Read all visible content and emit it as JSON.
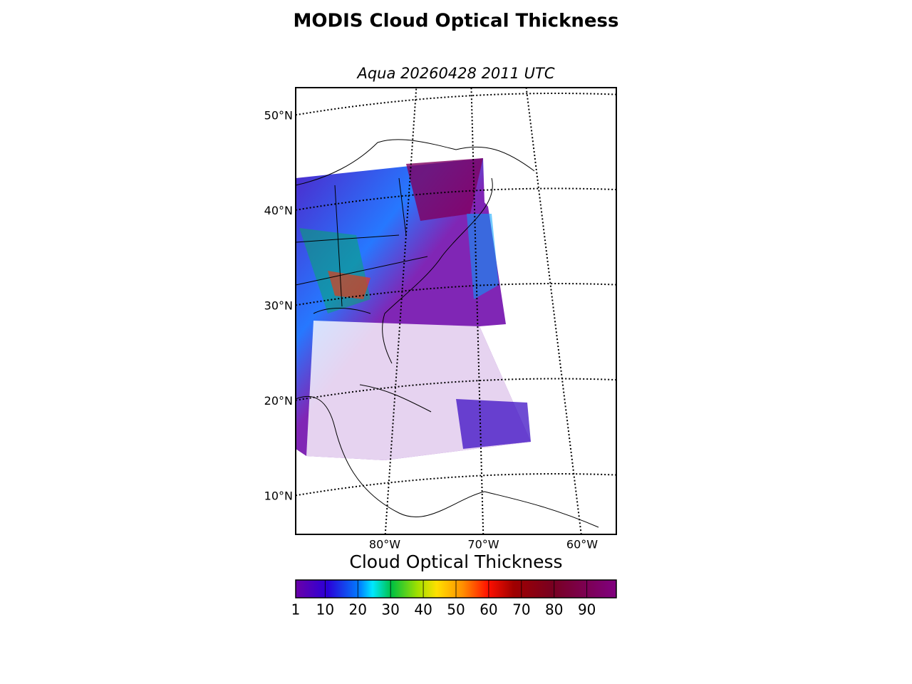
{
  "title": "MODIS Cloud Optical Thickness",
  "subtitle": "Aqua 20260428 2011 UTC",
  "map": {
    "lat_ticks": [
      {
        "value": 50,
        "label": "50°N"
      },
      {
        "value": 40,
        "label": "40°N"
      },
      {
        "value": 30,
        "label": "30°N"
      },
      {
        "value": 20,
        "label": "20°N"
      },
      {
        "value": 10,
        "label": "10°N"
      }
    ],
    "lon_ticks": [
      {
        "value": 80,
        "label": "80°W"
      },
      {
        "value": 70,
        "label": "70°W"
      },
      {
        "value": 60,
        "label": "60°W"
      }
    ]
  },
  "colorbar": {
    "label": "Cloud Optical Thickness",
    "range": [
      1,
      99
    ],
    "ticks": [
      1,
      10,
      20,
      30,
      40,
      50,
      60,
      70,
      80,
      90
    ]
  }
}
